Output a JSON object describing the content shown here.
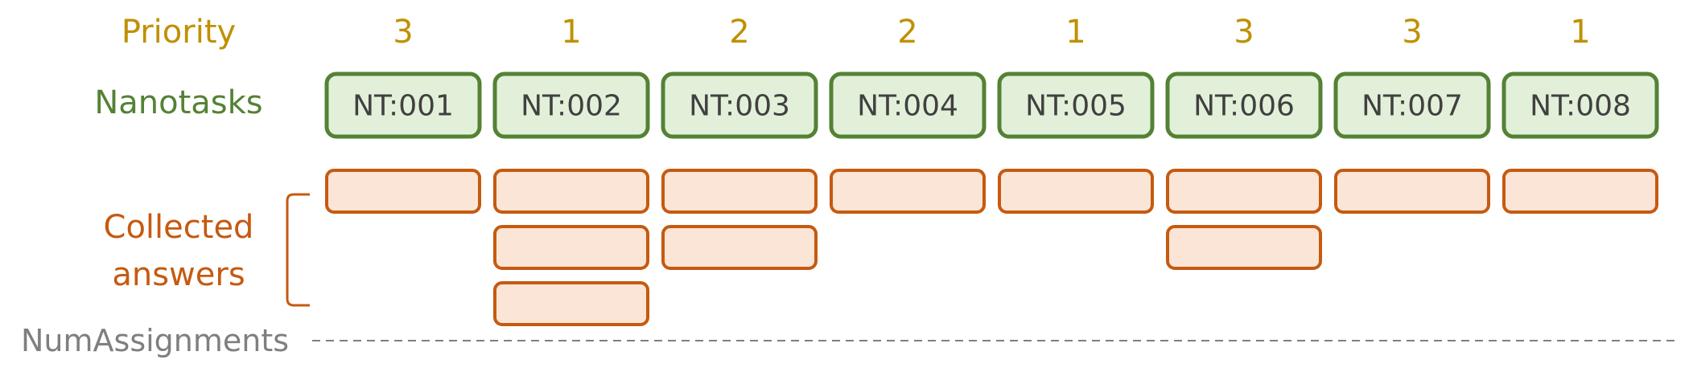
{
  "labels": {
    "priority": "Priority",
    "nanotasks": "Nanotasks",
    "collected_line1": "Collected",
    "collected_line2": "answers",
    "num_assignments": "NumAssignments"
  },
  "colors": {
    "priority_text": "#BF9000",
    "nanotask_border": "#548235",
    "nanotask_fill": "#E2F0D9",
    "nanotask_text": "#404040",
    "answer_border": "#C55A11",
    "answer_fill": "#FBE5D6",
    "collected_text": "#C55A11",
    "num_assign_text": "#7F7F7F",
    "dash_line": "#7F7F7F"
  },
  "tasks": [
    {
      "id": "NT:001",
      "priority": "3",
      "answers": 1
    },
    {
      "id": "NT:002",
      "priority": "1",
      "answers": 3
    },
    {
      "id": "NT:003",
      "priority": "2",
      "answers": 2
    },
    {
      "id": "NT:004",
      "priority": "2",
      "answers": 1
    },
    {
      "id": "NT:005",
      "priority": "1",
      "answers": 1
    },
    {
      "id": "NT:006",
      "priority": "3",
      "answers": 2
    },
    {
      "id": "NT:007",
      "priority": "3",
      "answers": 1
    },
    {
      "id": "NT:008",
      "priority": "1",
      "answers": 1
    }
  ]
}
